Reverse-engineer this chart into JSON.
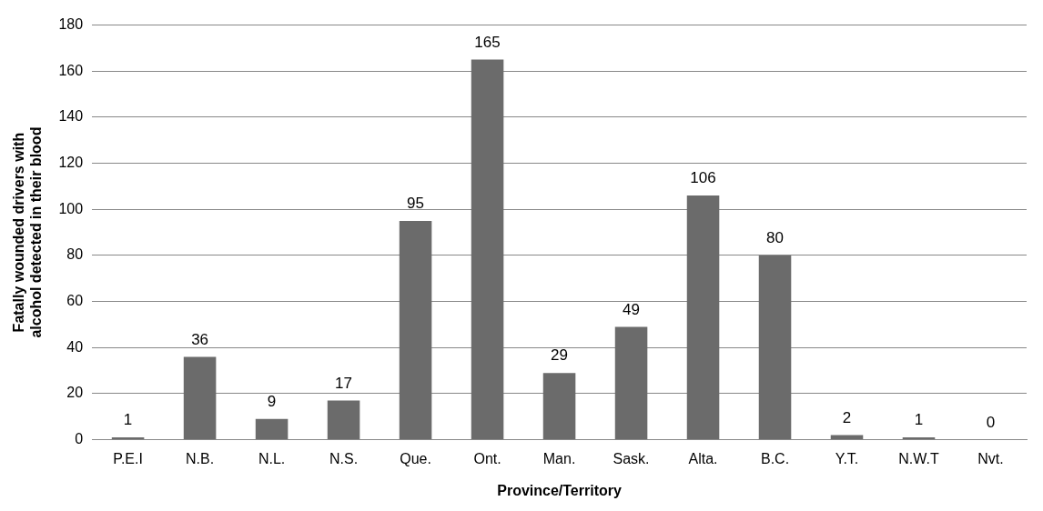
{
  "chart_data": {
    "type": "bar",
    "xlabel": "Province/Territory",
    "ylabel": "Fatally wounded drivers with alcohol detected in their blood",
    "categories": [
      "P.E.I",
      "N.B.",
      "N.L.",
      "N.S.",
      "Que.",
      "Ont.",
      "Man.",
      "Sask.",
      "Alta.",
      "B.C.",
      "Y.T.",
      "N.W.T",
      "Nvt."
    ],
    "values": [
      1,
      36,
      9,
      17,
      95,
      165,
      29,
      49,
      106,
      80,
      2,
      1,
      0
    ],
    "color": "#6b6b6b",
    "ylim": [
      0,
      180
    ],
    "yticks": [
      0,
      20,
      40,
      60,
      80,
      100,
      120,
      140,
      160,
      180
    ],
    "grid": "y",
    "data_labels": true,
    "legend": false
  }
}
